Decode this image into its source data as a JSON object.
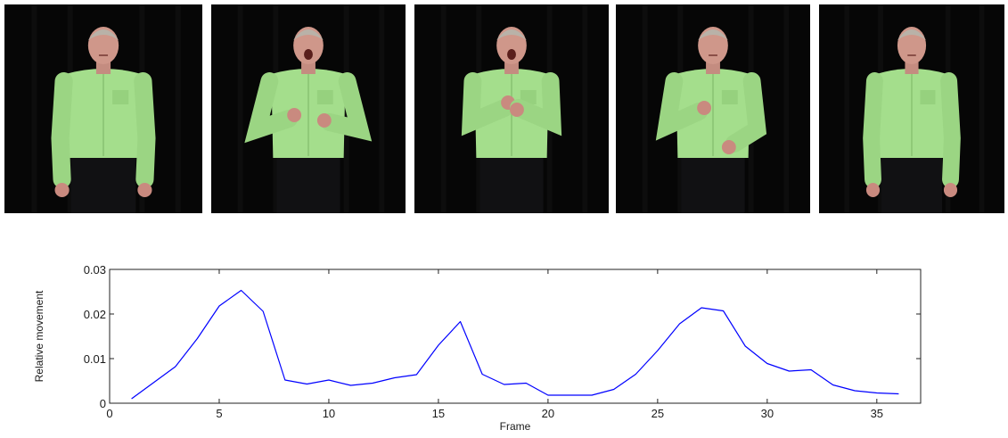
{
  "frames": [
    {
      "pose": "arms-down",
      "mouth": "closed"
    },
    {
      "pose": "hands-at-chest",
      "mouth": "open"
    },
    {
      "pose": "hands-clasped",
      "mouth": "open"
    },
    {
      "pose": "hand-sweep",
      "mouth": "closed"
    },
    {
      "pose": "arms-down",
      "mouth": "closed"
    }
  ],
  "chart_data": {
    "type": "line",
    "xlabel": "Frame",
    "ylabel": "Relative movement",
    "xlim": [
      0,
      37
    ],
    "ylim": [
      0,
      0.03
    ],
    "xticks": [
      0,
      5,
      10,
      15,
      20,
      25,
      30,
      35
    ],
    "yticks": [
      0,
      0.01,
      0.02,
      0.03
    ],
    "ytick_labels": [
      "0",
      "0.01",
      "0.02",
      "0.03"
    ],
    "grid": false,
    "series": [
      {
        "color": "#0000ff",
        "x": [
          1,
          2,
          3,
          4,
          5,
          6,
          7,
          8,
          9,
          10,
          11,
          12,
          13,
          14,
          15,
          16,
          17,
          18,
          19,
          20,
          21,
          22,
          23,
          24,
          25,
          26,
          27,
          28,
          29,
          30,
          31,
          32,
          33,
          34,
          35,
          36
        ],
        "values": [
          0.001,
          0.0046,
          0.0082,
          0.0145,
          0.0218,
          0.0253,
          0.0206,
          0.0052,
          0.0043,
          0.0052,
          0.004,
          0.0045,
          0.0057,
          0.0064,
          0.013,
          0.0183,
          0.0065,
          0.0042,
          0.0045,
          0.0018,
          0.0018,
          0.0018,
          0.0031,
          0.0065,
          0.0118,
          0.0178,
          0.0214,
          0.0207,
          0.0128,
          0.0089,
          0.0072,
          0.0075,
          0.0041,
          0.0028,
          0.0023,
          0.0021
        ]
      }
    ]
  }
}
